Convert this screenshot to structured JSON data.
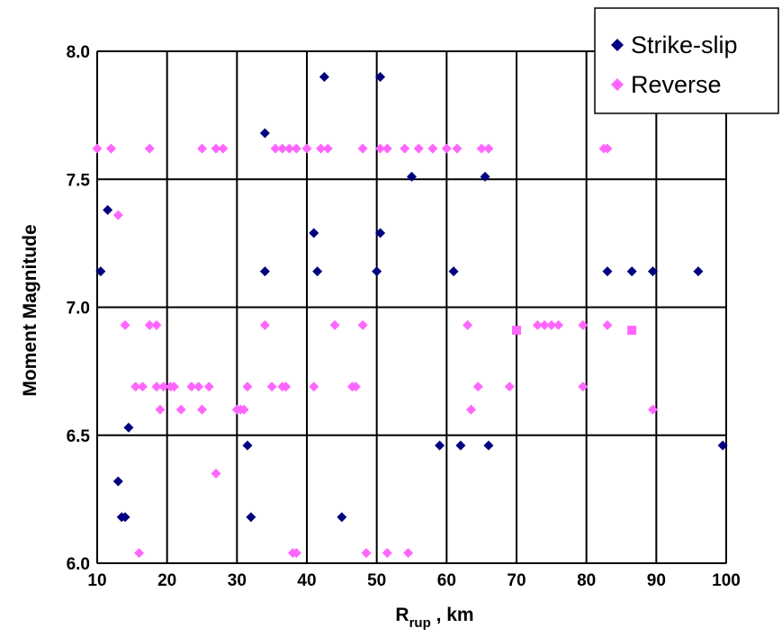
{
  "chart_data": {
    "type": "scatter",
    "title": "",
    "xlabel": {
      "main": "R",
      "sub": "rup",
      "suffix": " , km"
    },
    "ylabel": "Moment Magnitude",
    "xlim": [
      10,
      100
    ],
    "ylim": [
      6.0,
      8.0
    ],
    "x_ticks": [
      "10",
      "20",
      "30",
      "40",
      "50",
      "60",
      "70",
      "80",
      "90",
      "100"
    ],
    "y_ticks": [
      "6.0",
      "6.5",
      "7.0",
      "7.5",
      "8.0"
    ],
    "grid": true,
    "legend_position": "top-right",
    "series": [
      {
        "name": "Strike-slip",
        "color": "#000080",
        "marker": "diamond",
        "points": [
          [
            10.5,
            7.14
          ],
          [
            11.5,
            7.38
          ],
          [
            14.5,
            6.53
          ],
          [
            13.0,
            6.32
          ],
          [
            13.5,
            6.18
          ],
          [
            14.0,
            6.18
          ],
          [
            34.0,
            7.68
          ],
          [
            34.0,
            7.14
          ],
          [
            31.5,
            6.46
          ],
          [
            32.0,
            6.18
          ],
          [
            41.0,
            7.29
          ],
          [
            41.5,
            7.14
          ],
          [
            42.5,
            7.9
          ],
          [
            45.0,
            6.18
          ],
          [
            50.5,
            7.9
          ],
          [
            50.5,
            7.29
          ],
          [
            50.0,
            7.14
          ],
          [
            55.0,
            7.51
          ],
          [
            61.0,
            7.14
          ],
          [
            59.0,
            6.46
          ],
          [
            62.0,
            6.46
          ],
          [
            65.5,
            7.51
          ],
          [
            66.0,
            6.46
          ],
          [
            83.0,
            7.14
          ],
          [
            86.5,
            7.14
          ],
          [
            89.5,
            7.14
          ],
          [
            96.0,
            7.14
          ],
          [
            99.5,
            6.46
          ]
        ]
      },
      {
        "name": "Reverse",
        "color": "#ff66ff",
        "marker": "diamond",
        "points": [
          [
            10.0,
            7.62
          ],
          [
            12.0,
            7.62
          ],
          [
            17.5,
            7.62
          ],
          [
            25.0,
            7.62
          ],
          [
            27.0,
            7.62
          ],
          [
            28.0,
            7.62
          ],
          [
            13.0,
            7.36
          ],
          [
            14.0,
            6.93
          ],
          [
            17.5,
            6.93
          ],
          [
            18.5,
            6.93
          ],
          [
            15.5,
            6.69
          ],
          [
            16.5,
            6.69
          ],
          [
            18.5,
            6.69
          ],
          [
            19.5,
            6.69
          ],
          [
            20.5,
            6.69
          ],
          [
            21.0,
            6.69
          ],
          [
            23.5,
            6.69
          ],
          [
            24.5,
            6.69
          ],
          [
            26.0,
            6.69
          ],
          [
            19.0,
            6.6
          ],
          [
            22.0,
            6.6
          ],
          [
            25.0,
            6.6
          ],
          [
            30.0,
            6.6
          ],
          [
            30.5,
            6.6
          ],
          [
            31.0,
            6.6
          ],
          [
            31.5,
            6.69
          ],
          [
            27.0,
            6.35
          ],
          [
            16.0,
            6.04
          ],
          [
            34.0,
            6.93
          ],
          [
            35.0,
            6.69
          ],
          [
            36.5,
            6.69
          ],
          [
            37.0,
            6.69
          ],
          [
            35.5,
            7.62
          ],
          [
            36.5,
            7.62
          ],
          [
            37.5,
            7.62
          ],
          [
            38.5,
            7.62
          ],
          [
            40.0,
            7.62
          ],
          [
            42.0,
            7.62
          ],
          [
            43.0,
            7.62
          ],
          [
            41.0,
            6.69
          ],
          [
            44.0,
            6.93
          ],
          [
            46.5,
            6.69
          ],
          [
            47.0,
            6.69
          ],
          [
            48.0,
            6.93
          ],
          [
            38.0,
            6.04
          ],
          [
            38.5,
            6.04
          ],
          [
            48.5,
            6.04
          ],
          [
            51.5,
            6.04
          ],
          [
            54.5,
            6.04
          ],
          [
            48.0,
            7.62
          ],
          [
            50.5,
            7.62
          ],
          [
            51.5,
            7.62
          ],
          [
            54.0,
            7.62
          ],
          [
            56.0,
            7.62
          ],
          [
            58.0,
            7.62
          ],
          [
            60.0,
            7.62
          ],
          [
            61.5,
            7.62
          ],
          [
            65.0,
            7.62
          ],
          [
            66.0,
            7.62
          ],
          [
            63.0,
            6.93
          ],
          [
            64.5,
            6.69
          ],
          [
            63.5,
            6.6
          ],
          [
            69.0,
            6.69
          ],
          [
            73.0,
            6.93
          ],
          [
            74.0,
            6.93
          ],
          [
            75.0,
            6.93
          ],
          [
            76.0,
            6.93
          ],
          [
            79.5,
            6.93
          ],
          [
            79.5,
            6.69
          ],
          [
            82.5,
            7.62
          ],
          [
            83.0,
            7.62
          ],
          [
            83.0,
            6.93
          ],
          [
            89.5,
            6.6
          ]
        ],
        "square_points": [
          [
            70.0,
            6.91
          ],
          [
            86.5,
            6.91
          ]
        ]
      }
    ]
  }
}
